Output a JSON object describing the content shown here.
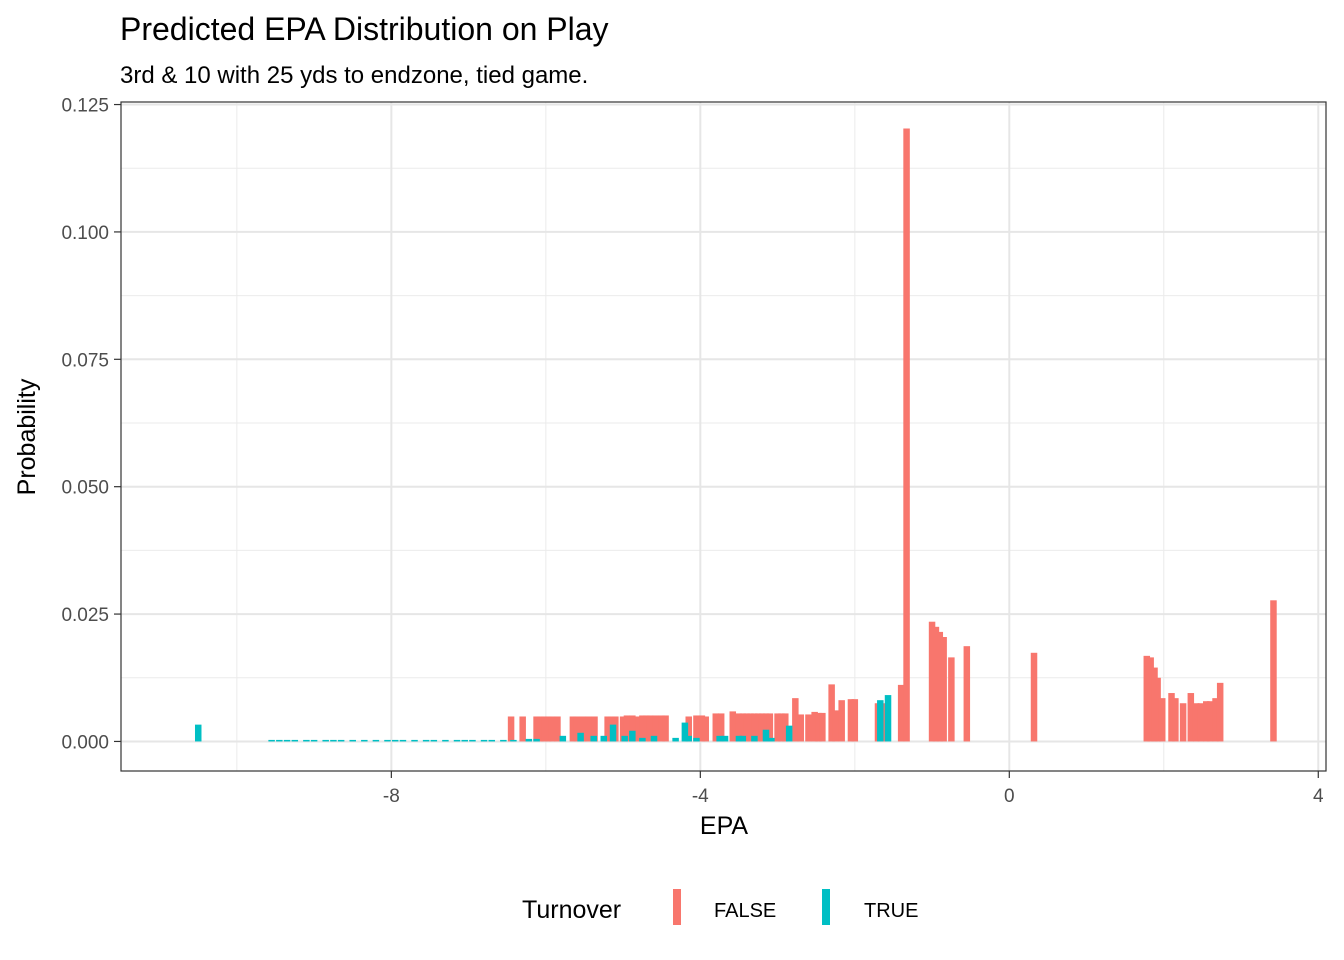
{
  "chart_data": {
    "type": "bar",
    "title": "Predicted EPA Distribution on Play",
    "subtitle": "3rd & 10 with 25 yds to endzone, tied game.",
    "xlabel": "EPA",
    "ylabel": "Probability",
    "xlim": [
      -11.5,
      4.1
    ],
    "ylim": [
      -0.0058,
      0.1255
    ],
    "x_ticks": [
      -8,
      -4,
      0,
      4
    ],
    "x_tick_labels": [
      "-8",
      "-4",
      "0",
      "4"
    ],
    "y_ticks": [
      0,
      0.025,
      0.05,
      0.075,
      0.1,
      0.125
    ],
    "y_tick_labels": [
      "0.000",
      "0.025",
      "0.050",
      "0.075",
      "0.100",
      "0.125"
    ],
    "grid": true,
    "legend_position": "bottom",
    "legend_title": "Turnover",
    "series": [
      {
        "name": "FALSE",
        "color": "#F8766D",
        "points": [
          [
            -6.45,
            0.0049
          ],
          [
            -6.3,
            0.0049
          ],
          [
            -6.12,
            0.0049
          ],
          [
            -6.07,
            0.0049
          ],
          [
            -6.02,
            0.0049
          ],
          [
            -5.97,
            0.0049
          ],
          [
            -5.92,
            0.0049
          ],
          [
            -5.85,
            0.0049
          ],
          [
            -5.65,
            0.0049
          ],
          [
            -5.6,
            0.0049
          ],
          [
            -5.52,
            0.0049
          ],
          [
            -5.45,
            0.0049
          ],
          [
            -5.37,
            0.0049
          ],
          [
            -5.2,
            0.0049
          ],
          [
            -5.15,
            0.0049
          ],
          [
            -5.1,
            0.0049
          ],
          [
            -5.0,
            0.0049
          ],
          [
            -4.95,
            0.0051
          ],
          [
            -4.88,
            0.0051
          ],
          [
            -4.8,
            0.0049
          ],
          [
            -4.75,
            0.0051
          ],
          [
            -4.7,
            0.0051
          ],
          [
            -4.65,
            0.0051
          ],
          [
            -4.58,
            0.0051
          ],
          [
            -4.5,
            0.0051
          ],
          [
            -4.45,
            0.0051
          ],
          [
            -4.15,
            0.0049
          ],
          [
            -4.05,
            0.0051
          ],
          [
            -3.98,
            0.0051
          ],
          [
            -3.93,
            0.0049
          ],
          [
            -3.8,
            0.0055
          ],
          [
            -3.73,
            0.0055
          ],
          [
            -3.58,
            0.0059
          ],
          [
            -3.5,
            0.0055
          ],
          [
            -3.45,
            0.0055
          ],
          [
            -3.4,
            0.0055
          ],
          [
            -3.35,
            0.0055
          ],
          [
            -3.3,
            0.0055
          ],
          [
            -3.25,
            0.0055
          ],
          [
            -3.2,
            0.0055
          ],
          [
            -3.15,
            0.0055
          ],
          [
            -3.1,
            0.0055
          ],
          [
            -3.0,
            0.0055
          ],
          [
            -2.95,
            0.0055
          ],
          [
            -2.9,
            0.0055
          ],
          [
            -2.77,
            0.0085
          ],
          [
            -2.7,
            0.0053
          ],
          [
            -2.6,
            0.0053
          ],
          [
            -2.52,
            0.0058
          ],
          [
            -2.47,
            0.0056
          ],
          [
            -2.42,
            0.0056
          ],
          [
            -2.3,
            0.0112
          ],
          [
            -2.25,
            0.0061
          ],
          [
            -2.17,
            0.0081
          ],
          [
            -2.05,
            0.0083
          ],
          [
            -2.0,
            0.0083
          ],
          [
            -1.7,
            0.0075
          ],
          [
            -1.63,
            0.0075
          ],
          [
            -1.4,
            0.0111
          ],
          [
            -1.33,
            0.1203
          ],
          [
            -1.0,
            0.0235
          ],
          [
            -0.95,
            0.0225
          ],
          [
            -0.9,
            0.0215
          ],
          [
            -0.85,
            0.0205
          ],
          [
            -0.75,
            0.0165
          ],
          [
            -0.55,
            0.0187
          ],
          [
            0.32,
            0.0174
          ],
          [
            1.78,
            0.0168
          ],
          [
            1.83,
            0.0165
          ],
          [
            1.88,
            0.0145
          ],
          [
            1.92,
            0.0125
          ],
          [
            1.98,
            0.0085
          ],
          [
            2.1,
            0.0095
          ],
          [
            2.15,
            0.0085
          ],
          [
            2.25,
            0.0075
          ],
          [
            2.35,
            0.0095
          ],
          [
            2.42,
            0.0075
          ],
          [
            2.48,
            0.0075
          ],
          [
            2.55,
            0.0079
          ],
          [
            2.6,
            0.0079
          ],
          [
            2.67,
            0.0085
          ],
          [
            2.73,
            0.0115
          ],
          [
            3.42,
            0.0277
          ]
        ]
      },
      {
        "name": "TRUE",
        "color": "#00BFC4",
        "points": [
          [
            -10.5,
            0.0033
          ],
          [
            -9.55,
            0.0003
          ],
          [
            -9.45,
            0.0003
          ],
          [
            -9.35,
            0.0003
          ],
          [
            -9.25,
            0.0003
          ],
          [
            -9.1,
            0.0003
          ],
          [
            -9.0,
            0.0003
          ],
          [
            -8.85,
            0.0003
          ],
          [
            -8.75,
            0.0003
          ],
          [
            -8.65,
            0.0003
          ],
          [
            -8.5,
            0.0003
          ],
          [
            -8.35,
            0.0003
          ],
          [
            -8.2,
            0.0003
          ],
          [
            -8.05,
            0.0003
          ],
          [
            -7.95,
            0.0003
          ],
          [
            -7.85,
            0.0003
          ],
          [
            -7.7,
            0.0003
          ],
          [
            -7.55,
            0.0003
          ],
          [
            -7.45,
            0.0003
          ],
          [
            -7.3,
            0.0003
          ],
          [
            -7.15,
            0.0003
          ],
          [
            -7.05,
            0.0003
          ],
          [
            -6.95,
            0.0003
          ],
          [
            -6.8,
            0.0003
          ],
          [
            -6.7,
            0.0003
          ],
          [
            -6.55,
            0.0003
          ],
          [
            -6.42,
            0.0003
          ],
          [
            -6.22,
            0.0005
          ],
          [
            -6.12,
            0.0005
          ],
          [
            -5.78,
            0.0011
          ],
          [
            -5.55,
            0.0017
          ],
          [
            -5.38,
            0.0011
          ],
          [
            -5.25,
            0.0011
          ],
          [
            -5.13,
            0.0033
          ],
          [
            -4.98,
            0.0011
          ],
          [
            -4.88,
            0.0021
          ],
          [
            -4.75,
            0.0007
          ],
          [
            -4.6,
            0.0011
          ],
          [
            -4.32,
            0.0007
          ],
          [
            -4.2,
            0.0037
          ],
          [
            -4.15,
            0.0011
          ],
          [
            -4.05,
            0.0007
          ],
          [
            -3.75,
            0.0011
          ],
          [
            -3.68,
            0.0011
          ],
          [
            -3.5,
            0.0011
          ],
          [
            -3.45,
            0.0011
          ],
          [
            -3.3,
            0.0011
          ],
          [
            -3.15,
            0.0023
          ],
          [
            -3.08,
            0.0007
          ],
          [
            -2.85,
            0.0031
          ],
          [
            -1.67,
            0.0081
          ],
          [
            -1.57,
            0.0091
          ]
        ]
      }
    ]
  }
}
